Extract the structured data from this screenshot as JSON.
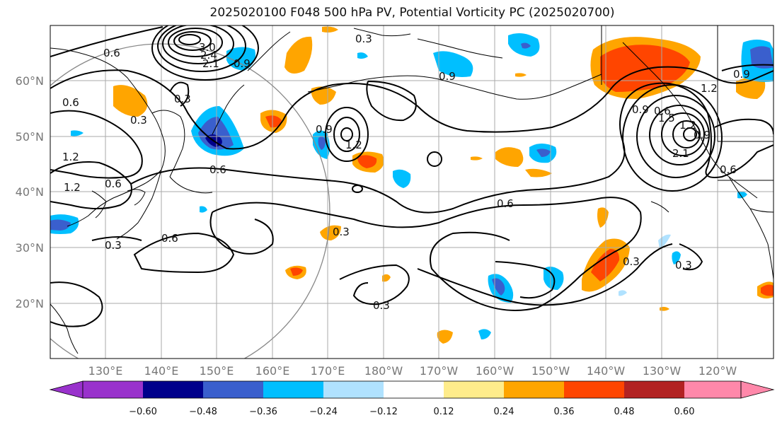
{
  "title": "2025020100 F048 500 hPa PV, Potential Vorticity PC (2025020700)",
  "latitude_labels": [
    "60°N",
    "50°N",
    "40°N",
    "30°N",
    "20°N"
  ],
  "longitude_labels": [
    "130°E",
    "140°E",
    "150°E",
    "160°E",
    "170°E",
    "180°W",
    "170°W",
    "160°W",
    "150°W",
    "140°W",
    "130°W",
    "120°W"
  ],
  "contour_labels": [
    "0.6",
    "3.0",
    "2.4",
    "2.1",
    "0.9",
    "0.3",
    "0.9",
    "0.6",
    "0.3",
    "0.9",
    "1.2",
    "0.9",
    "1.2",
    "1.2",
    "0.6",
    "0.6",
    "0.3",
    "0.6",
    "0.6",
    "0.3",
    "0.6",
    "0.3",
    "0.9",
    "1.2",
    "2.1",
    "0.9",
    "0.3",
    "0.6",
    "1.2",
    "0.3",
    "1.5",
    "0.3"
  ],
  "colorbar": {
    "tick_labels": [
      "−0.60",
      "−0.48",
      "−0.36",
      "−0.24",
      "−0.12",
      "0.12",
      "0.24",
      "0.36",
      "0.48",
      "0.60"
    ],
    "colors": [
      "#9932cc",
      "#00008b",
      "#3a5fcd",
      "#00bfff",
      "#b0e2ff",
      "#ffffff",
      "#ffec8b",
      "#ffa500",
      "#ff4500",
      "#b22222",
      "#ff88aa"
    ]
  },
  "colors": {
    "neg_strong": "#3a5fcd",
    "neg_mid": "#00bfff",
    "neg_weak": "#b0e2ff",
    "pos_weak": "#ffec8b",
    "pos_mid": "#ffa500",
    "pos_strong": "#ff4500",
    "gridline": "#aaaaaa",
    "range_ring": "#888888"
  }
}
